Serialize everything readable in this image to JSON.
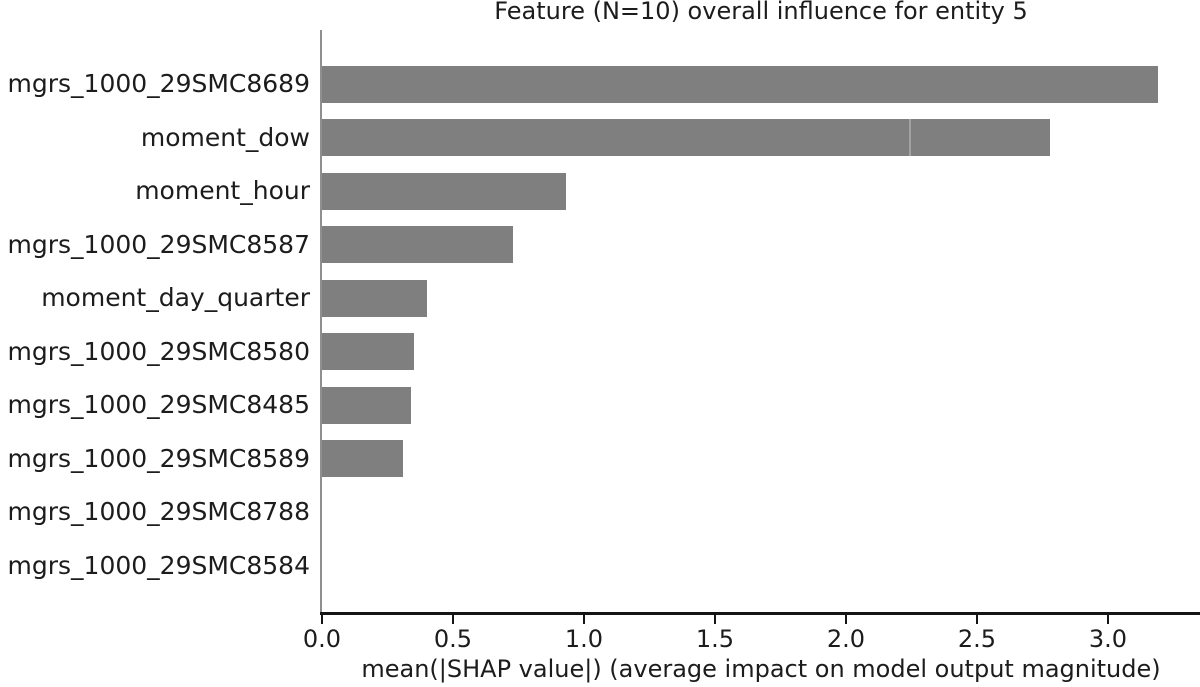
{
  "chart_data": {
    "type": "bar",
    "orientation": "horizontal",
    "title": "Feature (N=10) overall influence for entity 5",
    "xlabel": "mean(|SHAP value|) (average impact on model output magnitude)",
    "ylabel": "",
    "categories": [
      "mgrs_1000_29SMC8689",
      "moment_dow",
      "moment_hour",
      "mgrs_1000_29SMC8587",
      "moment_day_quarter",
      "mgrs_1000_29SMC8580",
      "mgrs_1000_29SMC8485",
      "mgrs_1000_29SMC8589",
      "mgrs_1000_29SMC8788",
      "mgrs_1000_29SMC8584"
    ],
    "values": [
      3.19,
      2.78,
      0.93,
      0.73,
      0.4,
      0.35,
      0.34,
      0.31,
      0.0,
      0.0
    ],
    "xticks": [
      0.0,
      0.5,
      1.0,
      1.5,
      2.0,
      2.5,
      3.0
    ],
    "xtick_labels": [
      "0.0",
      "0.5",
      "1.0",
      "1.5",
      "2.0",
      "2.5",
      "3.0"
    ],
    "xlim": [
      0,
      3.35
    ],
    "grid": false,
    "legend": null,
    "bar_color": "#7f7f7f",
    "axis_color": "#151515",
    "spine_left_color": "#8f8f8f",
    "text_color": "#1c1c1c",
    "segment_boundaries": {
      "moment_dow": 2.24
    }
  }
}
